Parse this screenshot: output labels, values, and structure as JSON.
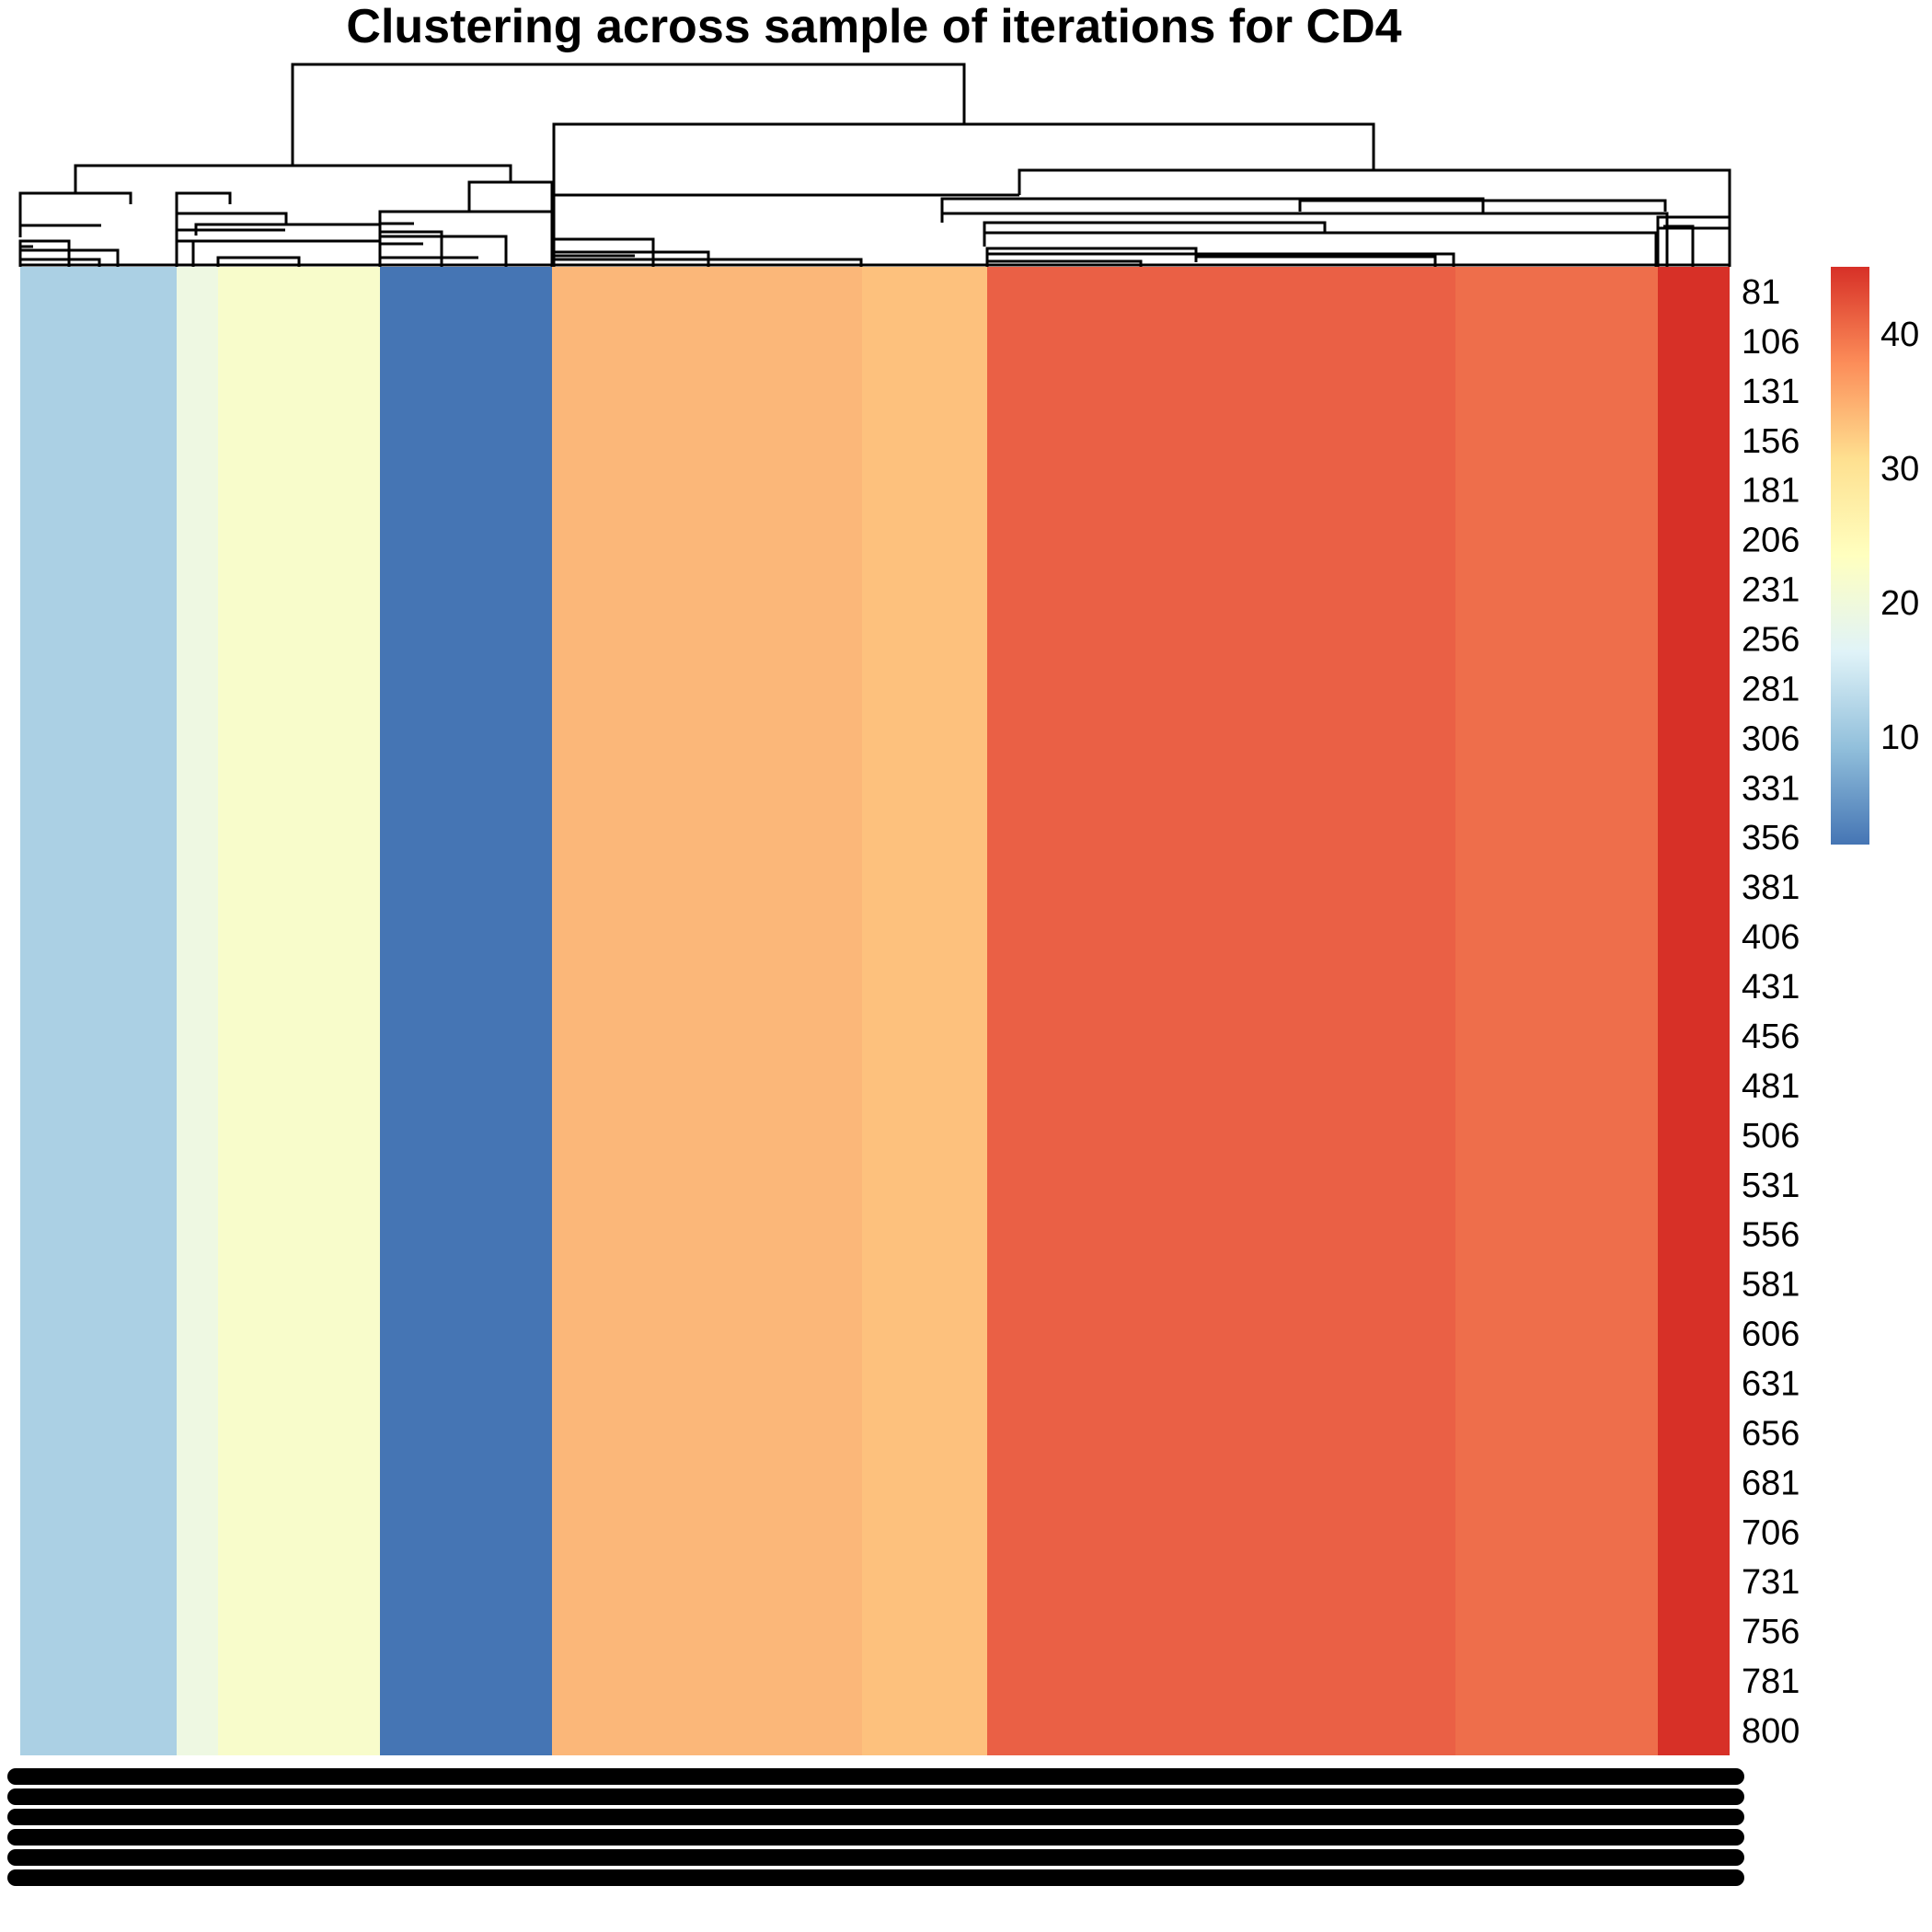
{
  "chart_data": {
    "type": "heatmap",
    "title": "Clustering across sample of iterations for CD4",
    "row_labels": [
      "81",
      "106",
      "131",
      "156",
      "181",
      "206",
      "231",
      "256",
      "281",
      "306",
      "331",
      "356",
      "381",
      "406",
      "431",
      "456",
      "481",
      "506",
      "531",
      "556",
      "581",
      "606",
      "631",
      "656",
      "681",
      "706",
      "731",
      "756",
      "781",
      "800"
    ],
    "column_groups": [
      {
        "value": 10,
        "color": "#abd0e4"
      },
      {
        "value": 17,
        "color": "#eef8e2"
      },
      {
        "value": 24,
        "color": "#f8fccb"
      },
      {
        "value": 2,
        "color": "#4575b4"
      },
      {
        "value": 35,
        "color": "#fbb779"
      },
      {
        "value": 34,
        "color": "#fdc17d"
      },
      {
        "value": 42,
        "color": "#ea6045"
      },
      {
        "value": 40,
        "color": "#ee6e4b"
      },
      {
        "value": 45,
        "color": "#d73027"
      }
    ],
    "legend": {
      "ticks": [
        10,
        20,
        30,
        40
      ],
      "range": [
        2,
        45
      ],
      "colors": [
        "#4575b4",
        "#91bfdb",
        "#e0f3f8",
        "#ffffbf",
        "#fee090",
        "#fc8d59",
        "#d73027"
      ]
    },
    "column_labels_note": "column labels rendered as overlapping black text"
  }
}
